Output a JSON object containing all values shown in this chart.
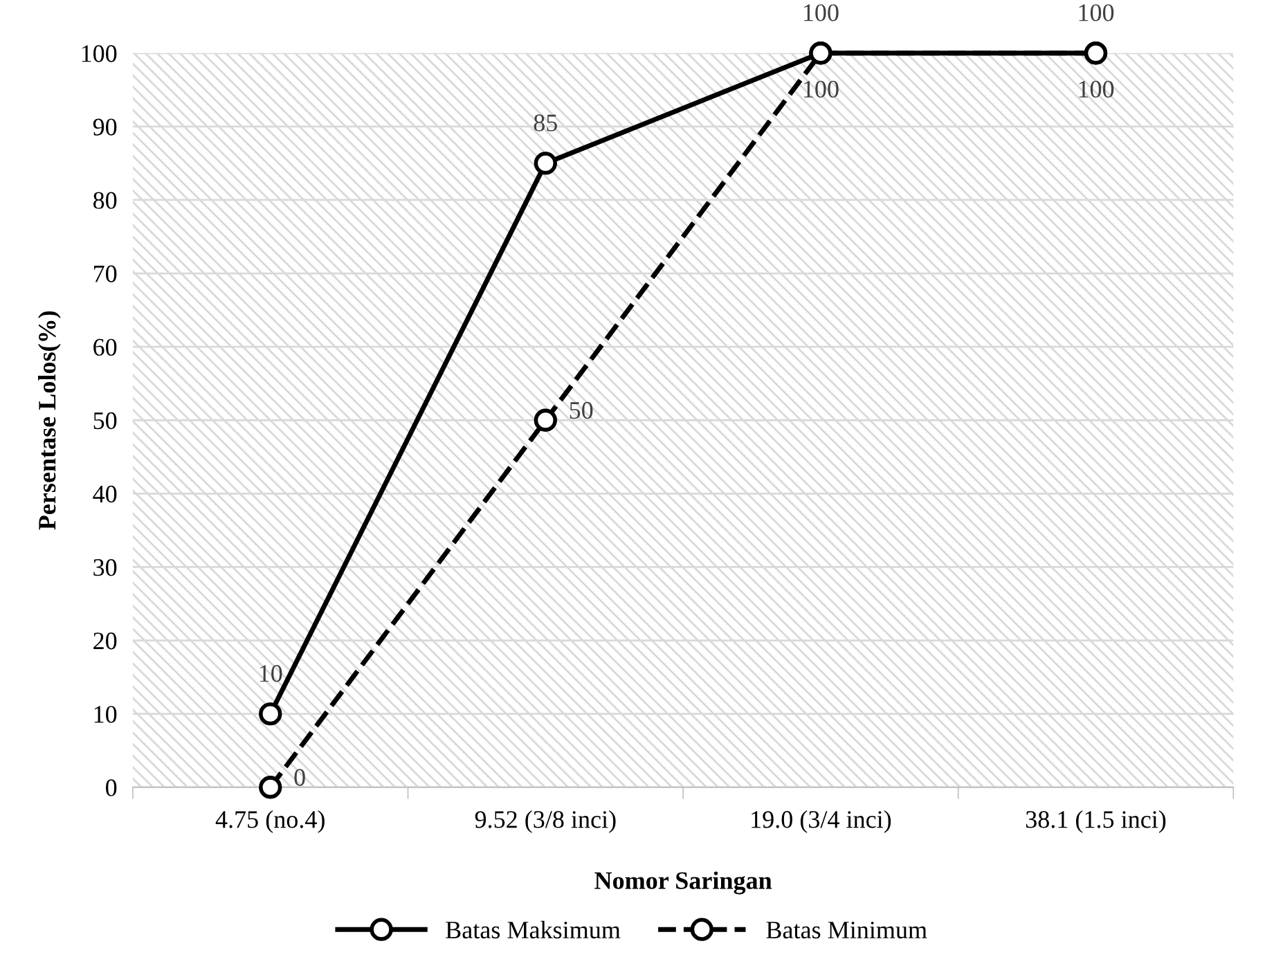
{
  "chart_data": {
    "type": "line",
    "xlabel": "Nomor Saringan",
    "ylabel": "Persentase Lolos(%)",
    "categories": [
      "4.75 (no.4)",
      "9.52 (3/8 inci)",
      "19.0 (3/4 inci)",
      "38.1 (1.5 inci)"
    ],
    "series": [
      {
        "name": "Batas Maksimum",
        "color": "#000000",
        "values": [
          10,
          85,
          100,
          100
        ],
        "line_style": "solid"
      },
      {
        "name": "Batas Minimum",
        "color": "#000000",
        "values": [
          0,
          50,
          100,
          100
        ],
        "line_style": "dashed"
      }
    ],
    "ylim": [
      0,
      100
    ],
    "yticks": [
      0,
      10,
      20,
      30,
      40,
      50,
      60,
      70,
      80,
      90,
      100
    ],
    "grid": "y",
    "legend": "bottom",
    "marker": "circle",
    "data_labels": true
  }
}
